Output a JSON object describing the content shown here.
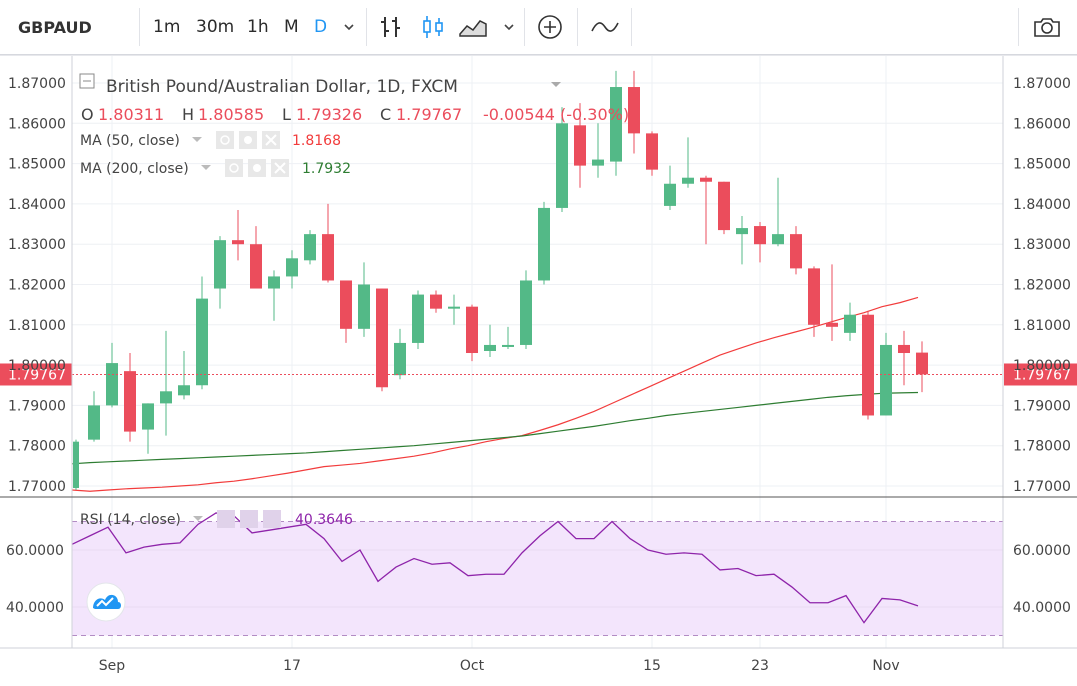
{
  "toolbar": {
    "symbol": "GBPAUD",
    "intervals": [
      "1m",
      "30m",
      "1h",
      "M",
      "D"
    ],
    "active_interval": "D"
  },
  "legend": {
    "title": "British Pound/Australian Dollar, 1D, FXCM",
    "open_label": "O",
    "open": "1.80311",
    "high_label": "H",
    "high": "1.80585",
    "low_label": "L",
    "low": "1.79326",
    "close_label": "C",
    "close": "1.79767",
    "change": "-0.00544 (-0.30%)",
    "ma50_label": "MA (50, close)",
    "ma50_value": "1.8168",
    "ma200_label": "MA (200, close)",
    "ma200_value": "1.7932",
    "rsi_label": "RSI (14, close)",
    "rsi_value": "40.3646"
  },
  "colors": {
    "up": "#53b987",
    "down": "#eb4d5c",
    "ma50": "#f23c3c",
    "ma200": "#2e7d32",
    "rsi": "#8e24aa",
    "rsi_band": "#f3e5fc",
    "price_label": "#eb4d5c",
    "grid": "#eef0f4"
  },
  "chart_data": [
    {
      "type": "candlestick",
      "title": "British Pound/Australian Dollar, 1D, FXCM",
      "ylim": [
        1.768,
        1.872
      ],
      "y_ticks": [
        "1.77000",
        "1.78000",
        "1.79000",
        "1.80000",
        "1.81000",
        "1.82000",
        "1.83000",
        "1.84000",
        "1.85000",
        "1.86000",
        "1.87000"
      ],
      "x_ticks": [
        {
          "label": "Sep",
          "index": 2
        },
        {
          "label": "17",
          "index": 12
        },
        {
          "label": "Oct",
          "index": 22
        },
        {
          "label": "15",
          "index": 32
        },
        {
          "label": "23",
          "index": 38
        },
        {
          "label": "Nov",
          "index": 45
        }
      ],
      "last_price": "1.79767",
      "candles": [
        {
          "o": 1.7695,
          "h": 1.7815,
          "l": 1.769,
          "c": 1.781
        },
        {
          "o": 1.7815,
          "h": 1.7935,
          "l": 1.781,
          "c": 1.79
        },
        {
          "o": 1.79,
          "h": 1.8055,
          "l": 1.7895,
          "c": 1.8005
        },
        {
          "o": 1.7985,
          "h": 1.803,
          "l": 1.781,
          "c": 1.7835
        },
        {
          "o": 1.784,
          "h": 1.7905,
          "l": 1.778,
          "c": 1.7905
        },
        {
          "o": 1.7905,
          "h": 1.8085,
          "l": 1.7825,
          "c": 1.7935
        },
        {
          "o": 1.7925,
          "h": 1.8035,
          "l": 1.7915,
          "c": 1.795
        },
        {
          "o": 1.795,
          "h": 1.822,
          "l": 1.794,
          "c": 1.8165
        },
        {
          "o": 1.819,
          "h": 1.832,
          "l": 1.814,
          "c": 1.831
        },
        {
          "o": 1.831,
          "h": 1.8385,
          "l": 1.826,
          "c": 1.83
        },
        {
          "o": 1.83,
          "h": 1.8345,
          "l": 1.819,
          "c": 1.819
        },
        {
          "o": 1.819,
          "h": 1.8235,
          "l": 1.811,
          "c": 1.822
        },
        {
          "o": 1.822,
          "h": 1.8285,
          "l": 1.819,
          "c": 1.8265
        },
        {
          "o": 1.826,
          "h": 1.8335,
          "l": 1.825,
          "c": 1.8325
        },
        {
          "o": 1.8325,
          "h": 1.84,
          "l": 1.8205,
          "c": 1.821
        },
        {
          "o": 1.821,
          "h": 1.821,
          "l": 1.8055,
          "c": 1.809
        },
        {
          "o": 1.809,
          "h": 1.8255,
          "l": 1.807,
          "c": 1.82
        },
        {
          "o": 1.819,
          "h": 1.819,
          "l": 1.7935,
          "c": 1.7945
        },
        {
          "o": 1.7975,
          "h": 1.809,
          "l": 1.7965,
          "c": 1.8055
        },
        {
          "o": 1.8055,
          "h": 1.8185,
          "l": 1.804,
          "c": 1.8175
        },
        {
          "o": 1.8175,
          "h": 1.8185,
          "l": 1.813,
          "c": 1.814
        },
        {
          "o": 1.814,
          "h": 1.8175,
          "l": 1.81,
          "c": 1.8145
        },
        {
          "o": 1.8145,
          "h": 1.815,
          "l": 1.801,
          "c": 1.803
        },
        {
          "o": 1.8035,
          "h": 1.81,
          "l": 1.802,
          "c": 1.805
        },
        {
          "o": 1.8045,
          "h": 1.8095,
          "l": 1.804,
          "c": 1.805
        },
        {
          "o": 1.805,
          "h": 1.8235,
          "l": 1.804,
          "c": 1.821
        },
        {
          "o": 1.821,
          "h": 1.8405,
          "l": 1.82,
          "c": 1.839
        },
        {
          "o": 1.839,
          "h": 1.864,
          "l": 1.838,
          "c": 1.86
        },
        {
          "o": 1.8595,
          "h": 1.865,
          "l": 1.844,
          "c": 1.8495
        },
        {
          "o": 1.8495,
          "h": 1.86,
          "l": 1.8465,
          "c": 1.851
        },
        {
          "o": 1.8505,
          "h": 1.873,
          "l": 1.847,
          "c": 1.869
        },
        {
          "o": 1.869,
          "h": 1.873,
          "l": 1.8525,
          "c": 1.8575
        },
        {
          "o": 1.8575,
          "h": 1.858,
          "l": 1.847,
          "c": 1.8485
        },
        {
          "o": 1.8395,
          "h": 1.8495,
          "l": 1.8385,
          "c": 1.845
        },
        {
          "o": 1.845,
          "h": 1.8565,
          "l": 1.844,
          "c": 1.8465
        },
        {
          "o": 1.8465,
          "h": 1.847,
          "l": 1.83,
          "c": 1.8455
        },
        {
          "o": 1.8455,
          "h": 1.8455,
          "l": 1.8325,
          "c": 1.8335
        },
        {
          "o": 1.8325,
          "h": 1.837,
          "l": 1.825,
          "c": 1.834
        },
        {
          "o": 1.8345,
          "h": 1.8355,
          "l": 1.8255,
          "c": 1.83
        },
        {
          "o": 1.83,
          "h": 1.8465,
          "l": 1.8295,
          "c": 1.8325
        },
        {
          "o": 1.8325,
          "h": 1.8345,
          "l": 1.8225,
          "c": 1.824
        },
        {
          "o": 1.824,
          "h": 1.8245,
          "l": 1.807,
          "c": 1.81
        },
        {
          "o": 1.8105,
          "h": 1.825,
          "l": 1.806,
          "c": 1.8095
        },
        {
          "o": 1.808,
          "h": 1.8155,
          "l": 1.806,
          "c": 1.8125
        },
        {
          "o": 1.8125,
          "h": 1.8135,
          "l": 1.7865,
          "c": 1.7875
        },
        {
          "o": 1.7875,
          "h": 1.808,
          "l": 1.7875,
          "c": 1.805
        },
        {
          "o": 1.805,
          "h": 1.8085,
          "l": 1.795,
          "c": 1.803
        },
        {
          "o": 1.8031,
          "h": 1.8059,
          "l": 1.7933,
          "c": 1.7977
        }
      ],
      "series": [
        {
          "name": "MA (50, close)",
          "values": [
            1.769,
            1.7687,
            1.769,
            1.7693,
            1.7695,
            1.7697,
            1.77,
            1.7703,
            1.7708,
            1.7712,
            1.7718,
            1.7725,
            1.7732,
            1.774,
            1.7748,
            1.7752,
            1.7756,
            1.7762,
            1.7768,
            1.7774,
            1.7782,
            1.7792,
            1.78,
            1.781,
            1.7818,
            1.7825,
            1.7838,
            1.7852,
            1.7868,
            1.7885,
            1.7905,
            1.7925,
            1.7945,
            1.7965,
            1.7985,
            1.8005,
            1.8025,
            1.804,
            1.8055,
            1.8068,
            1.808,
            1.8092,
            1.8105,
            1.8118,
            1.813,
            1.8145,
            1.8155,
            1.8168
          ]
        },
        {
          "name": "MA (200, close)",
          "values": [
            1.7755,
            1.7758,
            1.776,
            1.7762,
            1.7764,
            1.7766,
            1.7768,
            1.777,
            1.7772,
            1.7774,
            1.7776,
            1.7778,
            1.778,
            1.7782,
            1.7785,
            1.7788,
            1.7791,
            1.7794,
            1.7797,
            1.78,
            1.7804,
            1.7808,
            1.7812,
            1.7816,
            1.782,
            1.7824,
            1.783,
            1.7836,
            1.7842,
            1.7848,
            1.7855,
            1.7862,
            1.7868,
            1.7875,
            1.788,
            1.7885,
            1.789,
            1.7895,
            1.79,
            1.7905,
            1.791,
            1.7915,
            1.792,
            1.7924,
            1.7927,
            1.793,
            1.7931,
            1.7932
          ]
        }
      ]
    },
    {
      "type": "line",
      "title": "RSI (14, close)",
      "ylim": [
        25,
        75
      ],
      "y_ticks": [
        "40.0000",
        "60.0000"
      ],
      "band": [
        30,
        70
      ],
      "series": [
        {
          "name": "RSI (14, close)",
          "values": [
            62,
            65,
            68,
            59,
            61,
            62,
            62.5,
            69,
            73,
            72,
            66,
            67,
            68,
            69,
            64,
            56,
            60,
            49,
            54,
            57,
            55,
            55.5,
            51,
            51.5,
            51.5,
            59,
            65,
            70,
            64,
            64,
            70,
            64,
            60,
            58.5,
            59,
            58.5,
            53,
            53.5,
            51,
            51.5,
            47,
            41.5,
            41.5,
            44,
            34.5,
            43,
            42.5,
            40.4
          ]
        }
      ]
    }
  ]
}
